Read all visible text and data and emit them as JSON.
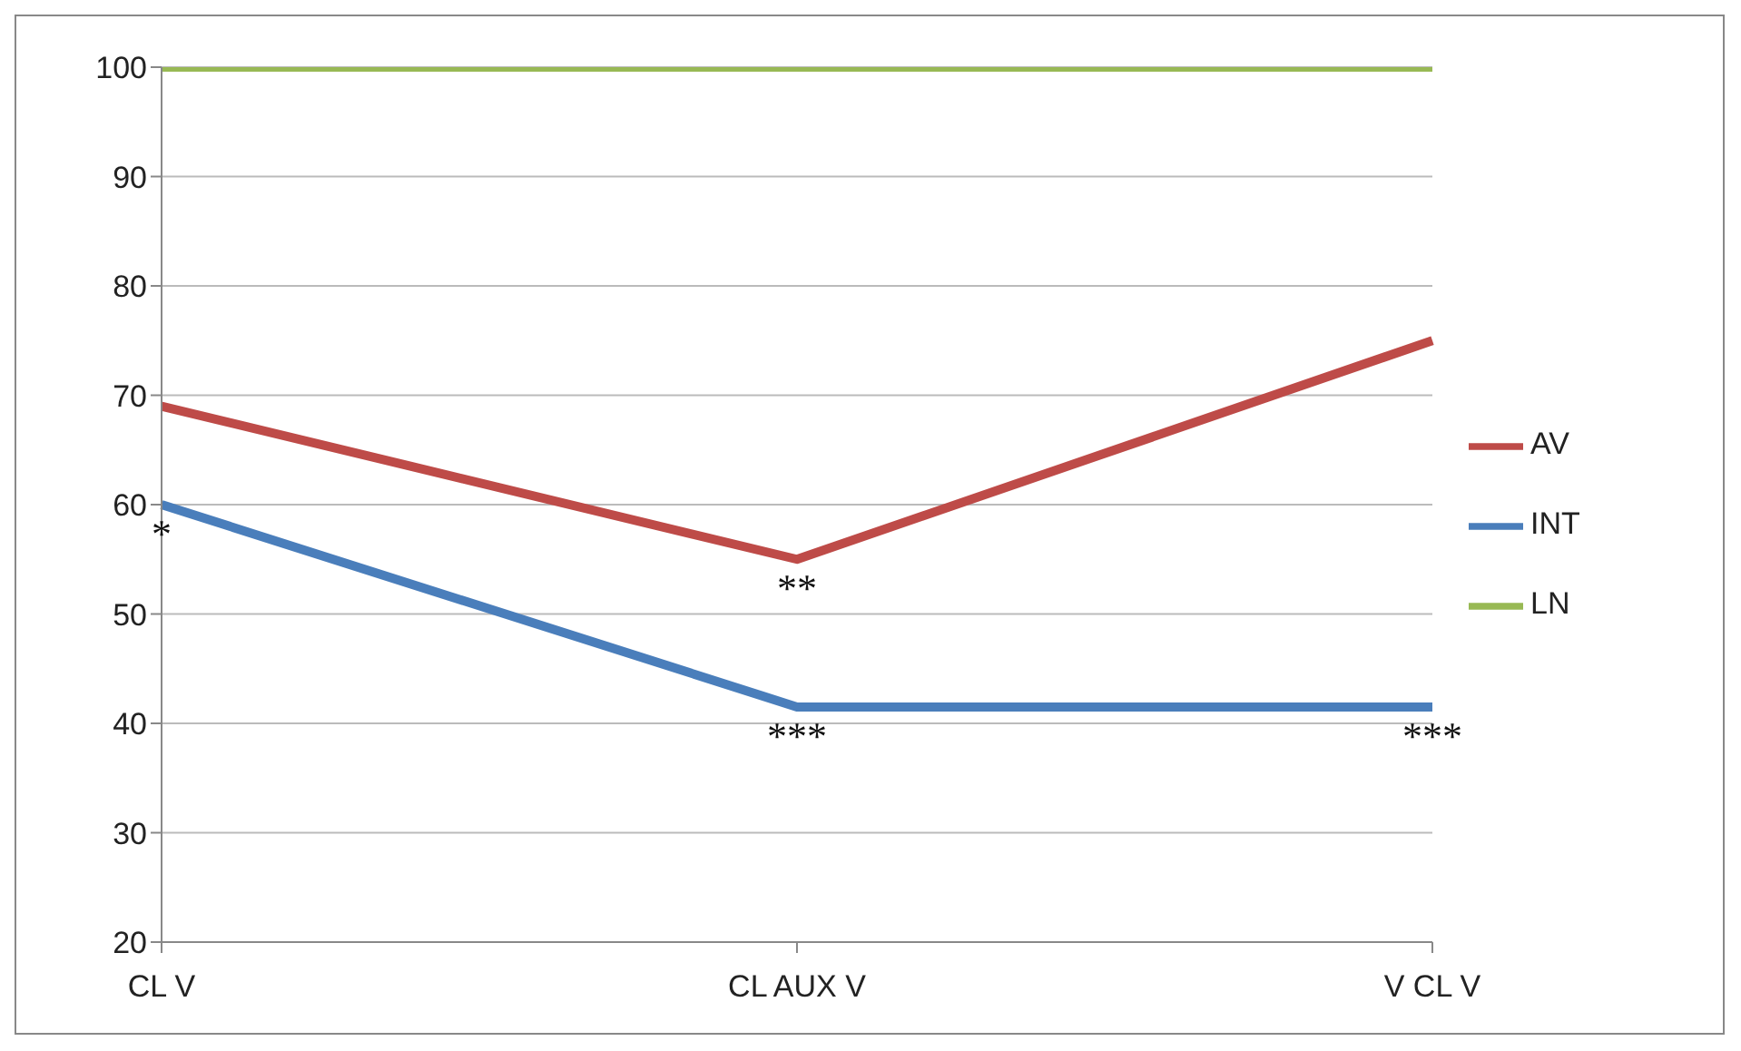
{
  "chart_data": {
    "type": "line",
    "categories": [
      "CL V",
      "CL AUX V",
      "V CL V"
    ],
    "series": [
      {
        "name": "INT",
        "color": "#4a7ebb",
        "values": [
          60,
          41.5,
          41.5
        ]
      },
      {
        "name": "AV",
        "color": "#be4b48",
        "values": [
          69,
          55,
          75
        ]
      },
      {
        "name": "LN",
        "color": "#98b954",
        "values": [
          100,
          100,
          100
        ]
      }
    ],
    "ylim": [
      20,
      100
    ],
    "yticks": [
      20,
      30,
      40,
      50,
      60,
      70,
      80,
      90,
      100
    ],
    "grid": "y",
    "legend": "right",
    "marker": "none",
    "line_style": "solid",
    "annotations": [
      {
        "text": "*",
        "x": "CL V",
        "y": 60
      },
      {
        "text": "**",
        "x": "CL AUX V",
        "y": 55
      },
      {
        "text": "***",
        "x": "CL AUX V",
        "y": 41.5
      },
      {
        "text": "***",
        "x": "V CL V",
        "y": 41.5
      }
    ]
  }
}
